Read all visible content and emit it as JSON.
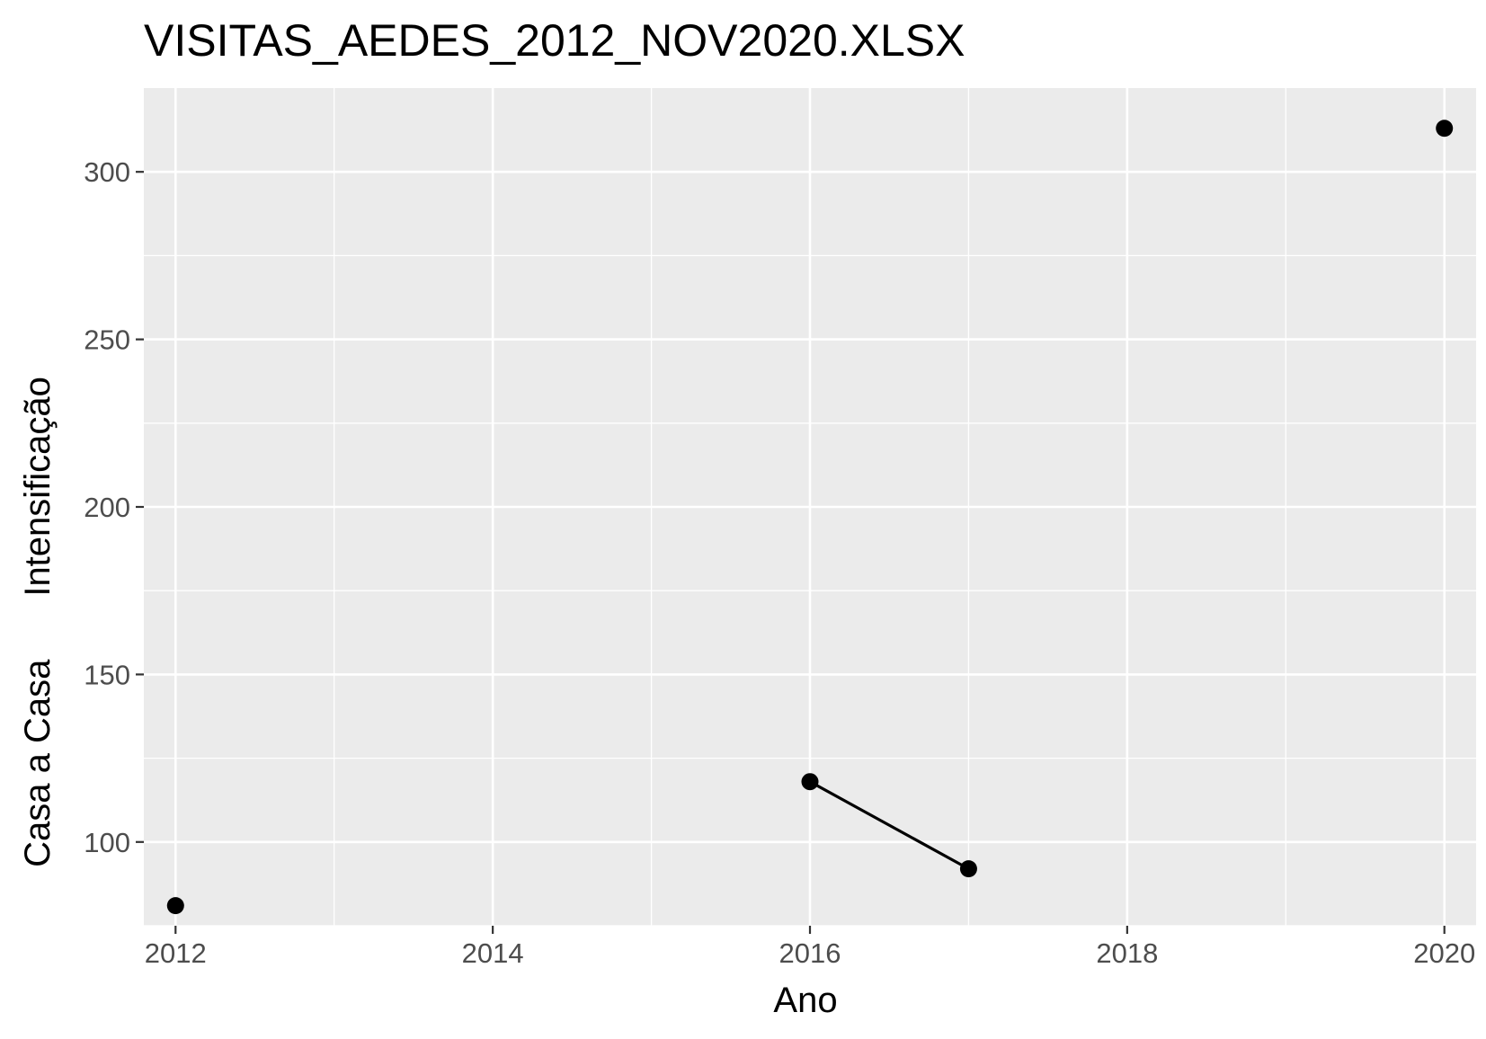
{
  "chart_data": {
    "type": "line",
    "title": "VISITAS_AEDES_2012_NOV2020.XLSX",
    "xlabel": "Ano",
    "ylabel_lines": [
      "Casa a Casa",
      "Intensificação"
    ],
    "xlim": [
      2011.8,
      2020.2
    ],
    "ylim": [
      75,
      325
    ],
    "x_ticks": [
      2012,
      2014,
      2016,
      2018,
      2020
    ],
    "x_tick_labels": [
      "2012",
      "2014",
      "2016",
      "2018",
      "2020"
    ],
    "x_minor_ticks": [
      2013,
      2015,
      2017,
      2019
    ],
    "y_ticks": [
      100,
      150,
      200,
      250,
      300
    ],
    "y_tick_labels": [
      "100",
      "150",
      "200",
      "250",
      "300"
    ],
    "y_minor_ticks": [
      75,
      125,
      175,
      225,
      275
    ],
    "grid": true,
    "series": [
      {
        "points": [
          {
            "x": 2012,
            "y": 81
          },
          {
            "x": 2016,
            "y": 118
          },
          {
            "x": 2017,
            "y": 92
          },
          {
            "x": 2020,
            "y": 313
          }
        ],
        "segments": [
          [
            1,
            2
          ]
        ]
      }
    ],
    "colors": {
      "panel_background": "#ebebeb",
      "grid_major": "#ffffff",
      "grid_minor": "#ffffff",
      "point": "#000000",
      "line": "#000000",
      "tick_label": "#4d4d4d",
      "tick_mark": "#333333"
    }
  }
}
